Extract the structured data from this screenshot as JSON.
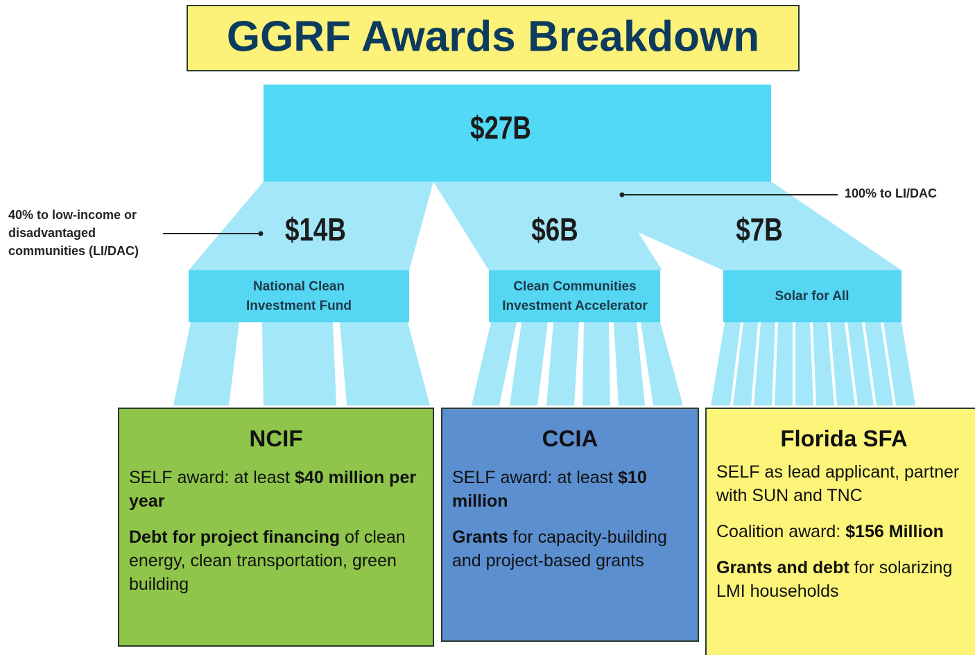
{
  "title": "GGRF Awards Breakdown",
  "total": "$27B",
  "annotations": {
    "left": [
      "40% to low-income or",
      "disadvantaged",
      "communities (LI/DAC)"
    ],
    "right": "100% to LI/DAC"
  },
  "branches": [
    {
      "amount": "$14B",
      "label": [
        "National Clean",
        "Investment Fund"
      ]
    },
    {
      "amount": "$6B",
      "label": [
        "Clean Communities",
        "Investment Accelerator"
      ]
    },
    {
      "amount": "$7B",
      "label": [
        "Solar for All"
      ]
    }
  ],
  "boxes": [
    {
      "title": "NCIF",
      "paragraphs": [
        [
          {
            "text": "SELF award: at least ",
            "bold": false
          },
          {
            "text": "$40 million per year",
            "bold": true
          }
        ],
        [
          {
            "text": "Debt for project financing",
            "bold": true
          },
          {
            "text": " of clean energy, clean transportation, green building",
            "bold": false
          }
        ]
      ]
    },
    {
      "title": "CCIA",
      "paragraphs": [
        [
          {
            "text": "SELF award: at least ",
            "bold": false
          },
          {
            "text": "$10 million",
            "bold": true
          }
        ],
        [
          {
            "text": "Grants",
            "bold": true
          },
          {
            "text": " for capacity-building and project-based grants",
            "bold": false
          }
        ]
      ]
    },
    {
      "title": "Florida SFA",
      "paragraphs": [
        [
          {
            "text": "SELF as lead applicant, partner with SUN and TNC",
            "bold": false
          }
        ],
        [
          {
            "text": "Coalition award: ",
            "bold": false
          },
          {
            "text": "$156 Million",
            "bold": true
          }
        ],
        [
          {
            "text": "Grants and debt",
            "bold": true
          },
          {
            "text": " for solarizing LMI households",
            "bold": false
          }
        ]
      ]
    }
  ]
}
